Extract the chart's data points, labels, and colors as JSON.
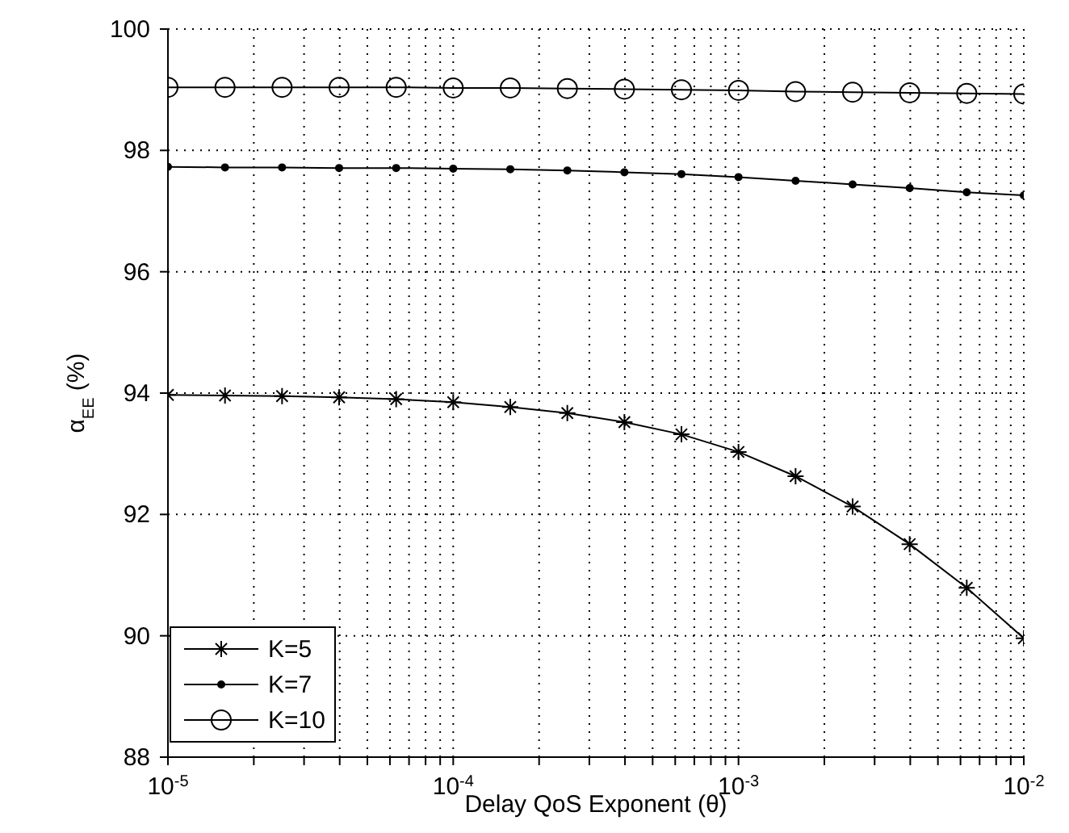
{
  "chart_data": {
    "type": "line",
    "xlabel": "Delay QoS Exponent (θ)",
    "ylabel": "α$_{EE}$ (%)",
    "x": [
      1e-05,
      1.585e-05,
      2.512e-05,
      3.981e-05,
      6.31e-05,
      0.0001,
      0.0001585,
      0.0002512,
      0.0003981,
      0.000631,
      0.001,
      0.001585,
      0.002512,
      0.003981,
      0.00631,
      0.01
    ],
    "series": [
      {
        "name": "K=5",
        "color": "#000000",
        "marker": "cross",
        "values": [
          93.97,
          93.96,
          93.95,
          93.93,
          93.9,
          93.85,
          93.77,
          93.67,
          93.52,
          93.32,
          93.03,
          92.63,
          92.13,
          91.51,
          90.79,
          89.96
        ]
      },
      {
        "name": "K=7",
        "color": "#000000",
        "marker": "circle",
        "values": [
          97.73,
          97.72,
          97.72,
          97.71,
          97.71,
          97.7,
          97.69,
          97.67,
          97.64,
          97.61,
          97.56,
          97.5,
          97.44,
          97.38,
          97.31,
          97.26
        ]
      },
      {
        "name": "K=10",
        "color": "#000000",
        "marker": "circle",
        "values": [
          99.04,
          99.04,
          99.04,
          99.04,
          99.04,
          99.03,
          99.03,
          99.02,
          99.01,
          99.0,
          98.99,
          98.97,
          98.96,
          98.95,
          98.94,
          98.93
        ]
      }
    ],
    "log": "x",
    "xlim": [
      1e-05,
      0.01
    ],
    "xticks": [
      {
        "value": 1e-05,
        "label": "10$^{-5}$"
      },
      {
        "value": 2e-05,
        "label": null
      },
      {
        "value": 3e-05,
        "label": null
      },
      {
        "value": 4e-05,
        "label": null
      },
      {
        "value": 5e-05,
        "label": null
      },
      {
        "value": 6e-05,
        "label": null
      },
      {
        "value": 7e-05,
        "label": null
      },
      {
        "value": 8e-05,
        "label": null
      },
      {
        "value": 9e-05,
        "label": null
      },
      {
        "value": 0.0001,
        "label": "10$^{-4}$"
      },
      {
        "value": 0.0002,
        "label": null
      },
      {
        "value": 0.0003,
        "label": null
      },
      {
        "value": 0.0004,
        "label": null
      },
      {
        "value": 0.0005,
        "label": null
      },
      {
        "value": 0.0006,
        "label": null
      },
      {
        "value": 0.0007,
        "label": null
      },
      {
        "value": 0.0008,
        "label": null
      },
      {
        "value": 0.0009,
        "label": null
      },
      {
        "value": 0.001,
        "label": "10$^{-3}$"
      },
      {
        "value": 0.002,
        "label": null
      },
      {
        "value": 0.003,
        "label": null
      },
      {
        "value": 0.004,
        "label": null
      },
      {
        "value": 0.005,
        "label": null
      },
      {
        "value": 0.006,
        "label": null
      },
      {
        "value": 0.007,
        "label": null
      },
      {
        "value": 0.008,
        "label": null
      },
      {
        "value": 0.009,
        "label": null
      },
      {
        "value": 0.01,
        "label": "10$^{-2}$"
      }
    ],
    "ylim": [
      88,
      100
    ],
    "yticks": [
      88,
      90,
      92,
      94,
      96,
      98,
      100
    ],
    "grid": true,
    "legend": "bottom left",
    "line_style": "solid"
  }
}
